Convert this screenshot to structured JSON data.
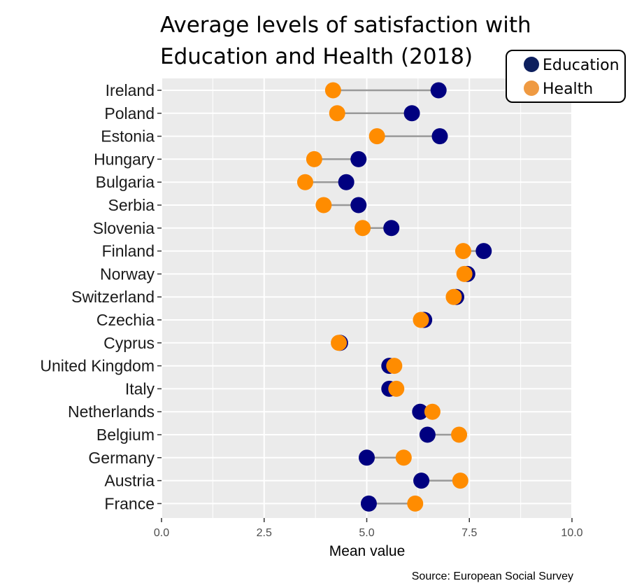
{
  "chart_data": {
    "type": "dumbbell",
    "title_lines": [
      "Average levels of satisfaction with",
      "Education and Health (2018)"
    ],
    "xlabel": "Mean value",
    "source": "Source: European Social Survey",
    "xlim": [
      0,
      10
    ],
    "x_ticks": [
      0,
      2.5,
      5,
      7.5,
      10
    ],
    "x_tick_labels": [
      "0.0",
      "2.5",
      "5.0",
      "7.5",
      "10.0"
    ],
    "grid": true,
    "legend_position": "top-right",
    "categories": [
      "Ireland",
      "Poland",
      "Estonia",
      "Hungary",
      "Bulgaria",
      "Serbia",
      "Slovenia",
      "Finland",
      "Norway",
      "Switzerland",
      "Czechia",
      "Cyprus",
      "United Kingdom",
      "Italy",
      "Netherlands",
      "Belgium",
      "Germany",
      "Austria",
      "France"
    ],
    "series": [
      {
        "name": "Education",
        "color": "#000080",
        "legend_color": "#0d1f5e",
        "values": [
          6.75,
          6.1,
          6.78,
          4.8,
          4.5,
          4.8,
          5.6,
          7.85,
          7.45,
          7.18,
          6.4,
          4.35,
          5.55,
          5.55,
          6.3,
          6.48,
          5.0,
          6.33,
          5.05
        ]
      },
      {
        "name": "Health",
        "color": "#ff8c00",
        "legend_color": "#ef9a42",
        "values": [
          4.18,
          4.28,
          5.25,
          3.72,
          3.5,
          3.95,
          4.9,
          7.35,
          7.38,
          7.12,
          6.32,
          4.32,
          5.67,
          5.72,
          6.6,
          7.25,
          5.9,
          7.28,
          6.18
        ]
      }
    ],
    "connector_color": "#999999",
    "panel_background": "#ebebeb",
    "grid_color": "#ffffff"
  }
}
